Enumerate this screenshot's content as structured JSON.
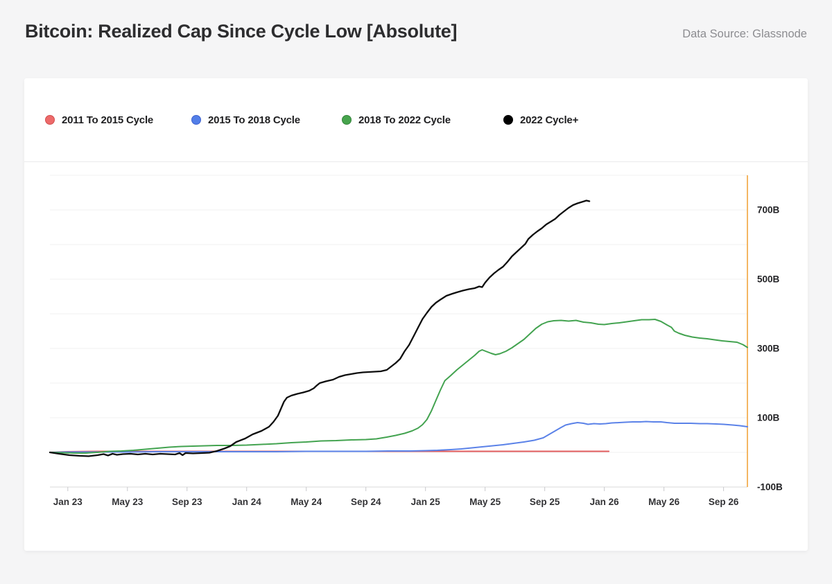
{
  "header": {
    "title": "Bitcoin: Realized Cap Since Cycle Low [Absolute]",
    "data_source": "Data Source: Glassnode"
  },
  "legend": {
    "items": [
      {
        "label": "2011 To 2015 Cycle",
        "color": "#ed6a6a",
        "border": "#d14f4f"
      },
      {
        "label": "2015 To 2018 Cycle",
        "color": "#527ee8",
        "border": "#3f63cf"
      },
      {
        "label": "2018 To 2022 Cycle",
        "color": "#47a44d",
        "border": "#35853c"
      },
      {
        "label": "2022 Cycle+",
        "color": "#000000",
        "border": "#000000"
      }
    ]
  },
  "chart_data": {
    "type": "line",
    "title": "Bitcoin: Realized Cap Since Cycle Low [Absolute]",
    "x_unit": "months since Jan 2023 (cycles aligned from cycle low)",
    "y_unit": "USD billions",
    "xlim": [
      -1.2,
      45.6
    ],
    "ylim": [
      -100,
      800
    ],
    "grid": {
      "min": -100,
      "max": 800,
      "step": 100
    },
    "x_ticks": [
      {
        "m": 0,
        "label": "Jan 23"
      },
      {
        "m": 4,
        "label": "May 23"
      },
      {
        "m": 8,
        "label": "Sep 23"
      },
      {
        "m": 12,
        "label": "Jan 24"
      },
      {
        "m": 16,
        "label": "May 24"
      },
      {
        "m": 20,
        "label": "Sep 24"
      },
      {
        "m": 24,
        "label": "Jan 25"
      },
      {
        "m": 28,
        "label": "May 25"
      },
      {
        "m": 32,
        "label": "Sep 25"
      },
      {
        "m": 36,
        "label": "Jan 26"
      },
      {
        "m": 40,
        "label": "May 26"
      },
      {
        "m": 44,
        "label": "Sep 26"
      }
    ],
    "y_tick_labels": [
      {
        "v": 700,
        "label": "700B"
      },
      {
        "v": 500,
        "label": "500B"
      },
      {
        "v": 300,
        "label": "300B"
      },
      {
        "v": 100,
        "label": "100B"
      },
      {
        "v": -100,
        "label": "-100B"
      }
    ],
    "marker_line": {
      "x": 45.6,
      "color": "#f2a43c"
    },
    "legend_position": "top",
    "series": [
      {
        "name": "2011 To 2015 Cycle",
        "color": "#e25d5d",
        "width": 2,
        "points": [
          [
            -1.2,
            0
          ],
          [
            0,
            2
          ],
          [
            2,
            3
          ],
          [
            6,
            3
          ],
          [
            10,
            3
          ],
          [
            14,
            3
          ],
          [
            18,
            3
          ],
          [
            22,
            3
          ],
          [
            26,
            3
          ],
          [
            30,
            3
          ],
          [
            33,
            3
          ],
          [
            35,
            3
          ],
          [
            36.3,
            3
          ]
        ]
      },
      {
        "name": "2015 To 2018 Cycle",
        "color": "#5b82e8",
        "width": 2,
        "points": [
          [
            -1.2,
            0
          ],
          [
            0,
            1
          ],
          [
            2,
            1
          ],
          [
            4,
            1
          ],
          [
            6,
            2
          ],
          [
            8,
            2
          ],
          [
            10,
            2
          ],
          [
            12,
            2
          ],
          [
            14,
            2
          ],
          [
            16,
            3
          ],
          [
            18,
            3
          ],
          [
            20,
            3
          ],
          [
            21.5,
            4
          ],
          [
            23,
            4
          ],
          [
            24,
            5
          ],
          [
            24.8,
            6
          ],
          [
            25.7,
            8
          ],
          [
            26.4,
            10
          ],
          [
            27.1,
            13
          ],
          [
            27.8,
            16
          ],
          [
            28.5,
            19
          ],
          [
            29.2,
            22
          ],
          [
            29.9,
            26
          ],
          [
            30.6,
            30
          ],
          [
            31.3,
            35
          ],
          [
            31.9,
            42
          ],
          [
            32.3,
            52
          ],
          [
            32.7,
            62
          ],
          [
            33.1,
            72
          ],
          [
            33.4,
            79
          ],
          [
            33.8,
            83
          ],
          [
            34.2,
            86
          ],
          [
            34.6,
            84
          ],
          [
            34.9,
            81
          ],
          [
            35.3,
            83
          ],
          [
            35.7,
            82
          ],
          [
            36.1,
            83
          ],
          [
            36.5,
            85
          ],
          [
            37.0,
            86
          ],
          [
            37.4,
            87
          ],
          [
            37.9,
            88
          ],
          [
            38.4,
            88
          ],
          [
            38.8,
            89
          ],
          [
            39.3,
            88
          ],
          [
            39.8,
            88
          ],
          [
            40.2,
            86
          ],
          [
            40.7,
            84
          ],
          [
            41.3,
            84
          ],
          [
            41.8,
            84
          ],
          [
            42.4,
            83
          ],
          [
            42.9,
            83
          ],
          [
            43.5,
            82
          ],
          [
            44.0,
            81
          ],
          [
            44.6,
            79
          ],
          [
            45.1,
            77
          ],
          [
            45.6,
            74
          ]
        ]
      },
      {
        "name": "2018 To 2022 Cycle",
        "color": "#43a350",
        "width": 2,
        "points": [
          [
            -1.2,
            0
          ],
          [
            -0.4,
            -1
          ],
          [
            0.4,
            -2
          ],
          [
            1.2,
            -2
          ],
          [
            2.0,
            0
          ],
          [
            2.8,
            3
          ],
          [
            3.6,
            4
          ],
          [
            4.4,
            6
          ],
          [
            5.2,
            9
          ],
          [
            6.0,
            12
          ],
          [
            6.8,
            15
          ],
          [
            7.6,
            17
          ],
          [
            8.4,
            18
          ],
          [
            9.2,
            19
          ],
          [
            10.0,
            20
          ],
          [
            11.0,
            20
          ],
          [
            12.0,
            21
          ],
          [
            13.0,
            23
          ],
          [
            14.0,
            25
          ],
          [
            15.0,
            28
          ],
          [
            16.0,
            30
          ],
          [
            17.0,
            33
          ],
          [
            18.0,
            34
          ],
          [
            19.0,
            36
          ],
          [
            20.0,
            37
          ],
          [
            20.7,
            39
          ],
          [
            21.4,
            44
          ],
          [
            22.0,
            49
          ],
          [
            22.6,
            55
          ],
          [
            23.1,
            62
          ],
          [
            23.5,
            70
          ],
          [
            23.8,
            80
          ],
          [
            24.1,
            95
          ],
          [
            24.4,
            120
          ],
          [
            24.7,
            150
          ],
          [
            25.0,
            180
          ],
          [
            25.3,
            207
          ],
          [
            25.7,
            222
          ],
          [
            26.1,
            238
          ],
          [
            26.5,
            252
          ],
          [
            26.9,
            266
          ],
          [
            27.3,
            280
          ],
          [
            27.6,
            292
          ],
          [
            27.8,
            296
          ],
          [
            28.1,
            291
          ],
          [
            28.4,
            286
          ],
          [
            28.7,
            282
          ],
          [
            29.0,
            285
          ],
          [
            29.4,
            292
          ],
          [
            29.8,
            302
          ],
          [
            30.2,
            314
          ],
          [
            30.6,
            326
          ],
          [
            31.0,
            342
          ],
          [
            31.4,
            358
          ],
          [
            31.8,
            370
          ],
          [
            32.2,
            377
          ],
          [
            32.6,
            380
          ],
          [
            33.1,
            381
          ],
          [
            33.6,
            379
          ],
          [
            34.1,
            381
          ],
          [
            34.6,
            376
          ],
          [
            35.1,
            374
          ],
          [
            35.6,
            370
          ],
          [
            36.0,
            369
          ],
          [
            36.5,
            372
          ],
          [
            37.0,
            374
          ],
          [
            37.5,
            377
          ],
          [
            38.0,
            380
          ],
          [
            38.5,
            383
          ],
          [
            39.0,
            383
          ],
          [
            39.4,
            384
          ],
          [
            39.8,
            378
          ],
          [
            40.2,
            368
          ],
          [
            40.5,
            361
          ],
          [
            40.7,
            350
          ],
          [
            41.0,
            344
          ],
          [
            41.4,
            338
          ],
          [
            41.9,
            333
          ],
          [
            42.4,
            330
          ],
          [
            42.9,
            328
          ],
          [
            43.4,
            325
          ],
          [
            43.9,
            322
          ],
          [
            44.4,
            320
          ],
          [
            44.9,
            318
          ],
          [
            45.3,
            311
          ],
          [
            45.6,
            303
          ]
        ]
      },
      {
        "name": "2022 Cycle+",
        "color": "#0d0d0d",
        "width": 2.3,
        "points": [
          [
            -1.2,
            0
          ],
          [
            -0.6,
            -4
          ],
          [
            0.1,
            -8
          ],
          [
            0.8,
            -10
          ],
          [
            1.4,
            -11
          ],
          [
            2.0,
            -8
          ],
          [
            2.4,
            -5
          ],
          [
            2.7,
            -9
          ],
          [
            3.0,
            -4
          ],
          [
            3.3,
            -7
          ],
          [
            3.7,
            -5
          ],
          [
            4.2,
            -4
          ],
          [
            4.7,
            -6
          ],
          [
            5.2,
            -4
          ],
          [
            5.7,
            -6
          ],
          [
            6.2,
            -4
          ],
          [
            6.7,
            -5
          ],
          [
            7.2,
            -6
          ],
          [
            7.5,
            -2
          ],
          [
            7.7,
            -8
          ],
          [
            7.9,
            -2
          ],
          [
            8.4,
            -3
          ],
          [
            9.0,
            -2
          ],
          [
            9.5,
            -1
          ],
          [
            10.0,
            4
          ],
          [
            10.5,
            11
          ],
          [
            10.9,
            18
          ],
          [
            11.3,
            30
          ],
          [
            11.9,
            40
          ],
          [
            12.4,
            52
          ],
          [
            13.0,
            62
          ],
          [
            13.5,
            74
          ],
          [
            13.8,
            88
          ],
          [
            14.1,
            106
          ],
          [
            14.3,
            126
          ],
          [
            14.5,
            146
          ],
          [
            14.7,
            158
          ],
          [
            15.0,
            164
          ],
          [
            15.4,
            169
          ],
          [
            15.8,
            173
          ],
          [
            16.2,
            178
          ],
          [
            16.5,
            185
          ],
          [
            16.7,
            193
          ],
          [
            16.9,
            200
          ],
          [
            17.3,
            205
          ],
          [
            17.8,
            210
          ],
          [
            18.2,
            218
          ],
          [
            18.6,
            223
          ],
          [
            19.0,
            226
          ],
          [
            19.4,
            229
          ],
          [
            19.8,
            231
          ],
          [
            20.2,
            232
          ],
          [
            20.6,
            233
          ],
          [
            21.0,
            234
          ],
          [
            21.4,
            238
          ],
          [
            21.7,
            248
          ],
          [
            22.0,
            258
          ],
          [
            22.3,
            270
          ],
          [
            22.6,
            292
          ],
          [
            22.9,
            310
          ],
          [
            23.2,
            335
          ],
          [
            23.5,
            360
          ],
          [
            23.8,
            385
          ],
          [
            24.1,
            403
          ],
          [
            24.4,
            420
          ],
          [
            24.7,
            432
          ],
          [
            25.0,
            441
          ],
          [
            25.4,
            452
          ],
          [
            25.8,
            458
          ],
          [
            26.1,
            462
          ],
          [
            26.5,
            467
          ],
          [
            26.9,
            471
          ],
          [
            27.3,
            474
          ],
          [
            27.6,
            479
          ],
          [
            27.8,
            477
          ],
          [
            28.0,
            490
          ],
          [
            28.3,
            505
          ],
          [
            28.6,
            517
          ],
          [
            28.9,
            527
          ],
          [
            29.2,
            536
          ],
          [
            29.5,
            550
          ],
          [
            29.8,
            566
          ],
          [
            30.1,
            578
          ],
          [
            30.4,
            590
          ],
          [
            30.7,
            602
          ],
          [
            30.9,
            616
          ],
          [
            31.2,
            628
          ],
          [
            31.5,
            638
          ],
          [
            31.8,
            647
          ],
          [
            32.1,
            658
          ],
          [
            32.4,
            666
          ],
          [
            32.7,
            674
          ],
          [
            33.0,
            686
          ],
          [
            33.3,
            696
          ],
          [
            33.6,
            706
          ],
          [
            33.9,
            714
          ],
          [
            34.2,
            719
          ],
          [
            34.5,
            723
          ],
          [
            34.8,
            727
          ],
          [
            35.0,
            725
          ]
        ]
      }
    ]
  }
}
